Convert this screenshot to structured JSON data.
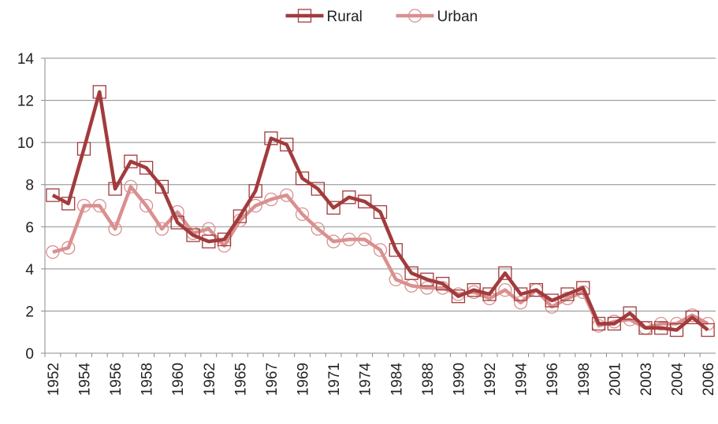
{
  "chart_data": {
    "type": "line",
    "categories": [
      "1952",
      null,
      "1954",
      null,
      "1956",
      null,
      "1958",
      null,
      "1960",
      null,
      "1962",
      null,
      "1965",
      null,
      "1967",
      null,
      "1969",
      null,
      "1971",
      null,
      "1974",
      null,
      "1984",
      null,
      "1988",
      null,
      "1990",
      null,
      "1992",
      null,
      "1994",
      null,
      "1996",
      null,
      "1998",
      null,
      "2001",
      null,
      "2003",
      null,
      "2004",
      null,
      "2006"
    ],
    "series": [
      {
        "name": "Rural",
        "color": "#a23b3d",
        "marker": "square",
        "values": [
          7.5,
          7.1,
          9.7,
          12.4,
          7.8,
          9.1,
          8.8,
          7.9,
          6.2,
          5.6,
          5.3,
          5.4,
          6.5,
          7.7,
          10.2,
          9.9,
          8.3,
          7.8,
          6.9,
          7.4,
          7.2,
          6.7,
          4.9,
          3.8,
          3.5,
          3.3,
          2.7,
          3.0,
          2.8,
          3.8,
          2.8,
          3.0,
          2.5,
          2.8,
          3.1,
          1.4,
          1.4,
          1.9,
          1.2,
          1.2,
          1.1,
          1.7,
          1.1
        ]
      },
      {
        "name": "Urban",
        "color": "#d9908f",
        "marker": "circle",
        "values": [
          4.8,
          5.0,
          7.0,
          7.0,
          5.9,
          7.9,
          7.0,
          5.9,
          6.7,
          5.7,
          5.9,
          5.1,
          6.3,
          7.0,
          7.3,
          7.5,
          6.6,
          5.9,
          5.3,
          5.4,
          5.4,
          4.9,
          3.5,
          3.2,
          3.1,
          3.1,
          2.8,
          2.9,
          2.6,
          3.0,
          2.4,
          3.0,
          2.2,
          2.6,
          2.9,
          1.3,
          1.5,
          1.6,
          1.2,
          1.4,
          1.4,
          1.8,
          1.4
        ]
      }
    ],
    "ylim": [
      0,
      14
    ],
    "yticks": [
      0,
      2,
      4,
      6,
      8,
      10,
      12,
      14
    ],
    "grid": true,
    "legend": "top"
  }
}
